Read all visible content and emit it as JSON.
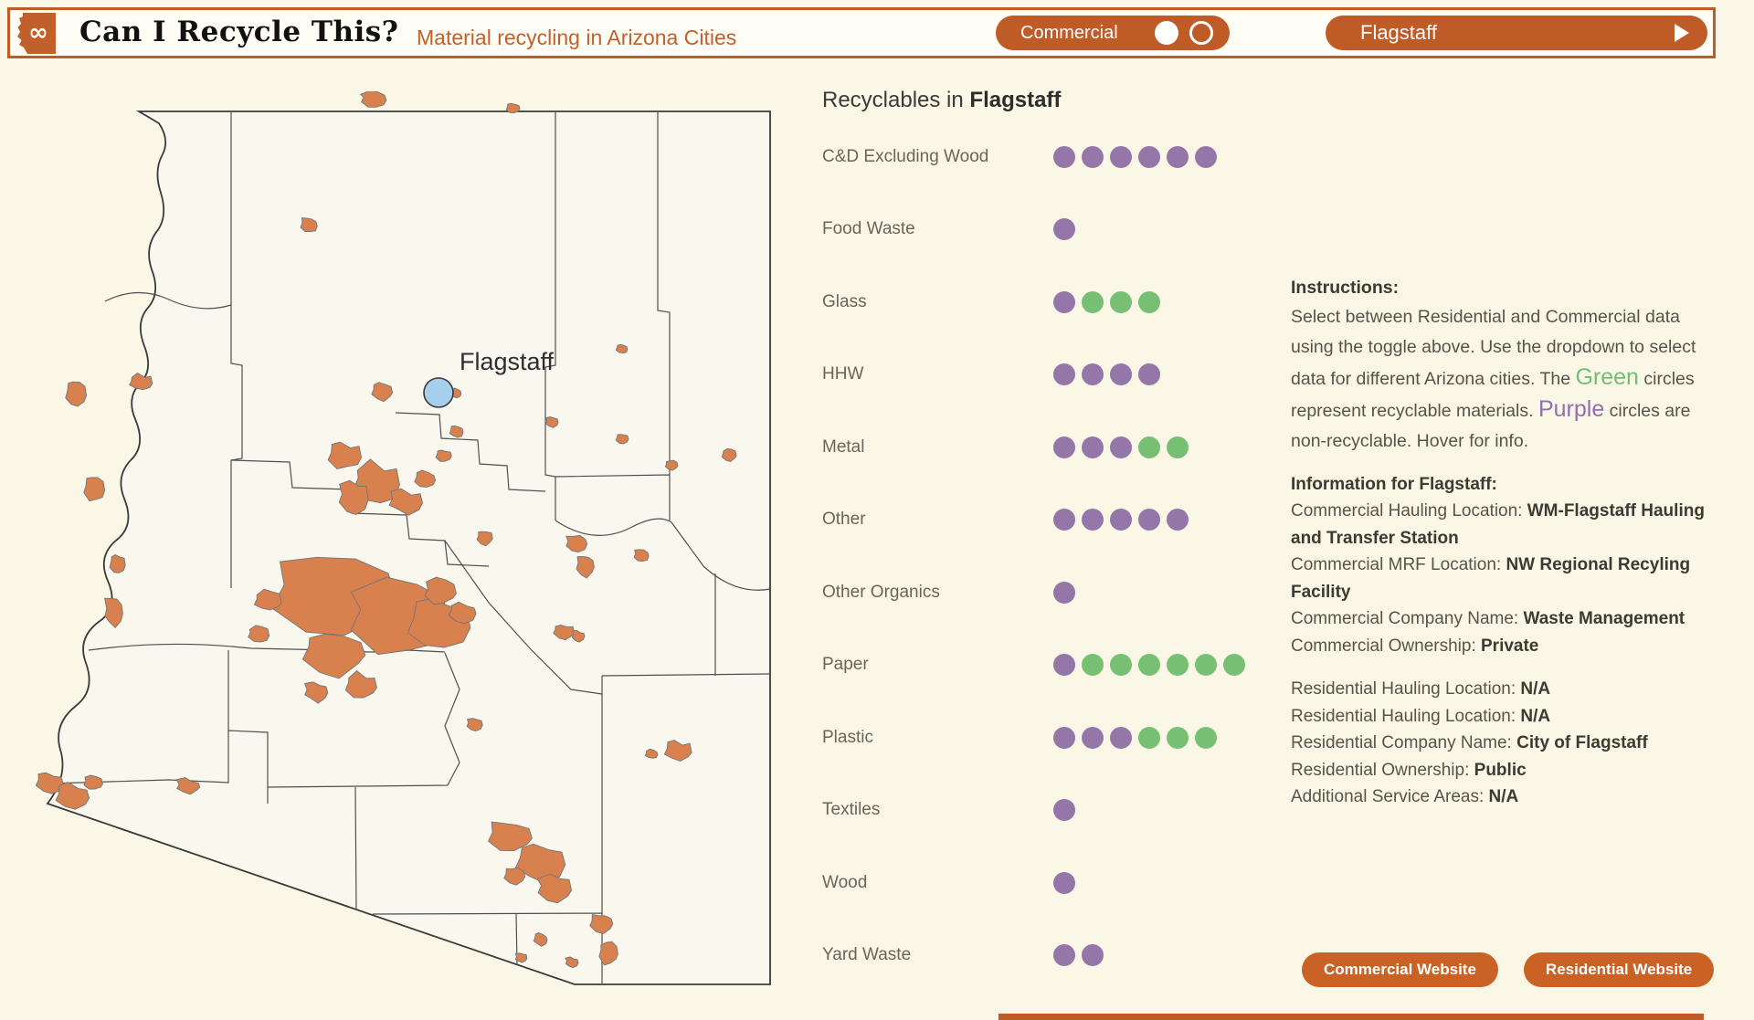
{
  "header": {
    "title": "Can I Recycle This?",
    "subtitle": "Material recycling in Arizona Cities",
    "toggle": {
      "label": "Commercial",
      "options": [
        "Commercial",
        "Residential"
      ],
      "selected": "Commercial"
    },
    "city_dropdown": {
      "value": "Flagstaff"
    }
  },
  "map": {
    "selected_city_label": "Flagstaff"
  },
  "chart_data": {
    "type": "dot-row",
    "title_prefix": "Recyclables in",
    "title_city": "Flagstaff",
    "legend": {
      "green": "recyclable",
      "purple": "non-recyclable"
    },
    "colors": {
      "recyclable": "#77C073",
      "non_recyclable": "#9476A9"
    },
    "categories": [
      "C&D Excluding Wood",
      "Food Waste",
      "Glass",
      "HHW",
      "Metal",
      "Other",
      "Other Organics",
      "Paper",
      "Plastic",
      "Textiles",
      "Wood",
      "Yard Waste"
    ],
    "series": [
      {
        "name": "non-recyclable (purple)",
        "values": [
          6,
          1,
          1,
          4,
          3,
          5,
          1,
          1,
          3,
          1,
          1,
          2
        ]
      },
      {
        "name": "recyclable (green)",
        "values": [
          0,
          0,
          3,
          0,
          2,
          0,
          0,
          6,
          3,
          0,
          0,
          0
        ]
      }
    ]
  },
  "instructions": {
    "heading": "Instructions:",
    "lines": [
      [
        {
          "t": "Select between Residential and Commercial data"
        }
      ],
      [
        {
          "t": "using the toggle above. Use the dropdown to select"
        }
      ],
      [
        {
          "t": "data for different Arizona cities. The "
        },
        {
          "t": "Green",
          "c": "green"
        },
        {
          "t": " circles"
        }
      ],
      [
        {
          "t": "represent recyclable materials. "
        },
        {
          "t": "Purple",
          "c": "purple"
        },
        {
          "t": " circles are"
        }
      ],
      [
        {
          "t": "non-recyclable. Hover for info."
        }
      ]
    ]
  },
  "info": {
    "heading": "Information for Flagstaff:",
    "lines": [
      [
        {
          "t": "Commercial Hauling Location: "
        },
        {
          "t": "WM-Flagstaff Hauling",
          "b": 1
        }
      ],
      [
        {
          "t": "and Transfer Station",
          "b": 1
        }
      ],
      [
        {
          "t": "Commercial MRF Location: "
        },
        {
          "t": "NW Regional Recyling",
          "b": 1
        }
      ],
      [
        {
          "t": "Facility",
          "b": 1
        }
      ],
      [
        {
          "t": "Commercial Company Name: "
        },
        {
          "t": "Waste Management",
          "b": 1
        }
      ],
      [
        {
          "t": "Commercial Ownership: "
        },
        {
          "t": "Private",
          "b": 1
        }
      ],
      [],
      [
        {
          "t": "Residential Hauling Location: "
        },
        {
          "t": "N/A",
          "b": 1
        }
      ],
      [
        {
          "t": "Residential Hauling Location: "
        },
        {
          "t": "N/A",
          "b": 1
        }
      ],
      [
        {
          "t": "Residential Company Name: "
        },
        {
          "t": "City of Flagstaff",
          "b": 1
        }
      ],
      [
        {
          "t": "Residential Ownership: "
        },
        {
          "t": "Public",
          "b": 1
        }
      ],
      [
        {
          "t": "Additional Service Areas: "
        },
        {
          "t": "N/A",
          "b": 1
        }
      ]
    ]
  },
  "buttons": {
    "commercial": "Commercial Website",
    "residential": "Residential Website"
  }
}
